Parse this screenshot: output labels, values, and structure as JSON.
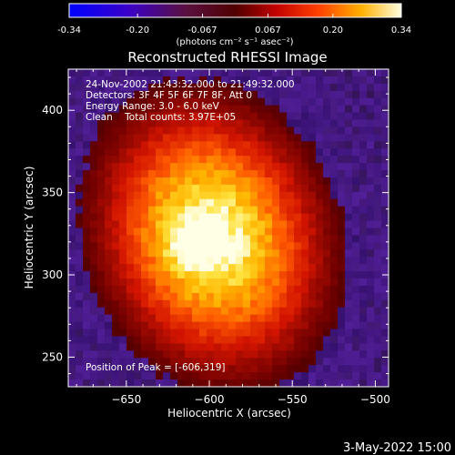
{
  "colorbar": {
    "ticks": [
      "-0.34",
      "-0.20",
      "-0.067",
      "0.067",
      "0.20",
      "0.34"
    ],
    "unit_label": "(photons cm⁻² s⁻¹ asec⁻²)",
    "range": [
      -0.34,
      0.34
    ]
  },
  "title": "Reconstructed RHESSI Image",
  "annotations": {
    "time": "24-Nov-2002 21:43:32.000 to 21:49:32.000",
    "detectors": "Detectors: 3F 4F 5F 6F 7F 8F, Att 0",
    "energy": "Energy Range: 3.0 - 6.0 keV",
    "clean": "Clean    Total counts: 3.97E+05",
    "peak": "Position of Peak = [-606,319]"
  },
  "x_axis": {
    "label": "Heliocentric X (arcsec)",
    "ticks": [
      -650,
      -600,
      -550,
      -500
    ],
    "tick_labels": [
      "−650",
      "−600",
      "−550",
      "−500"
    ],
    "range": [
      -685,
      -492
    ]
  },
  "y_axis": {
    "label": "Heliocentric Y (arcsec)",
    "ticks": [
      250,
      300,
      350,
      400
    ],
    "tick_labels": [
      "250",
      "300",
      "350",
      "400"
    ],
    "range": [
      232,
      425
    ]
  },
  "peak_position": [
    -606,
    319
  ],
  "footer": {
    "date": "3-May-2022 15:00"
  }
}
